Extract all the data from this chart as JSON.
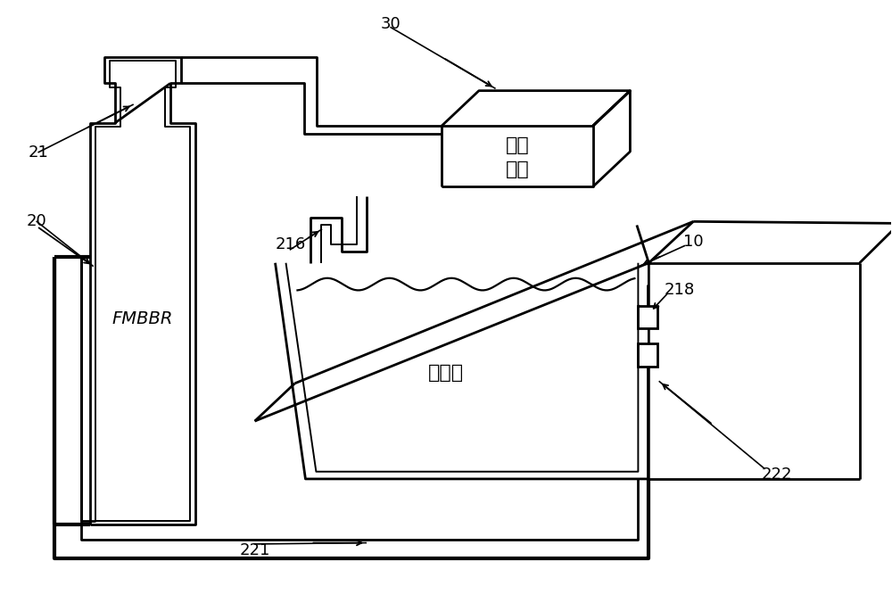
{
  "bg_color": "#ffffff",
  "line_color": "#000000",
  "lw": 2.0,
  "tlw": 3.0,
  "foam_text_line1": "泡沫",
  "foam_text_line2": "处理",
  "jianyang_label": "兼氧池",
  "fmbbr_label": "FMBBR",
  "labels": [
    "20",
    "21",
    "30",
    "10",
    "216",
    "218",
    "221",
    "222"
  ],
  "font_size_label": 13,
  "font_size_chinese": 16,
  "font_size_fmbbr": 14
}
